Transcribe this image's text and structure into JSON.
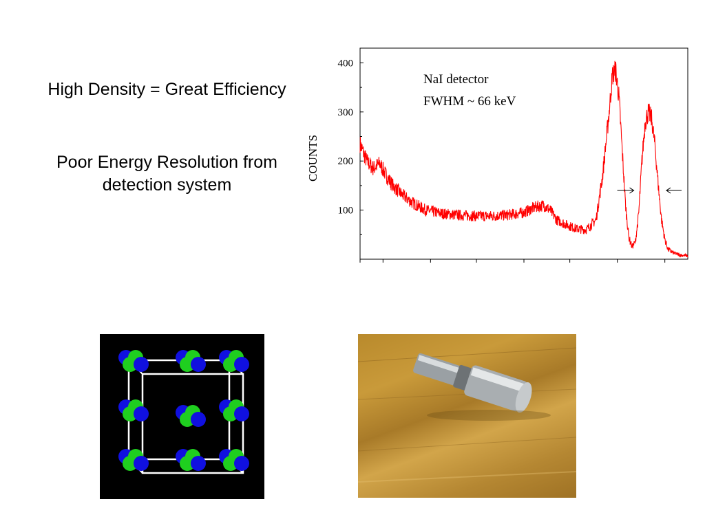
{
  "slide": {
    "line1": "High Density = Great Efficiency",
    "line2a": "Poor Energy Resolution from",
    "line2b": "detection system"
  },
  "chart_data": {
    "type": "line",
    "ylabel": "COUNTS",
    "xlabel": "",
    "annotation_line1": "NaI detector",
    "annotation_line2": "FWHM ~ 66 keV",
    "yticks": [
      100,
      200,
      300,
      400
    ],
    "ylim": [
      0,
      430
    ],
    "xlim": [
      0,
      1000
    ],
    "series": [
      {
        "color": "#ff0000",
        "x": [
          0,
          20,
          40,
          60,
          80,
          100,
          130,
          160,
          200,
          250,
          300,
          350,
          400,
          450,
          500,
          530,
          560,
          580,
          600,
          630,
          660,
          690,
          720,
          740,
          760,
          770,
          780,
          790,
          800,
          810,
          820,
          830,
          840,
          850,
          860,
          870,
          880,
          890,
          900,
          910,
          920,
          930,
          940,
          950,
          960,
          970,
          980,
          1000
        ],
        "values": [
          235,
          200,
          185,
          195,
          170,
          150,
          130,
          115,
          100,
          93,
          90,
          88,
          88,
          90,
          95,
          105,
          110,
          100,
          80,
          70,
          62,
          60,
          80,
          170,
          300,
          375,
          385,
          330,
          220,
          110,
          45,
          25,
          35,
          90,
          200,
          280,
          300,
          285,
          230,
          150,
          80,
          40,
          20,
          15,
          12,
          10,
          8,
          7
        ]
      }
    ],
    "fwhm_marker": {
      "left_x": 810,
      "right_x": 960,
      "y": 140
    }
  }
}
